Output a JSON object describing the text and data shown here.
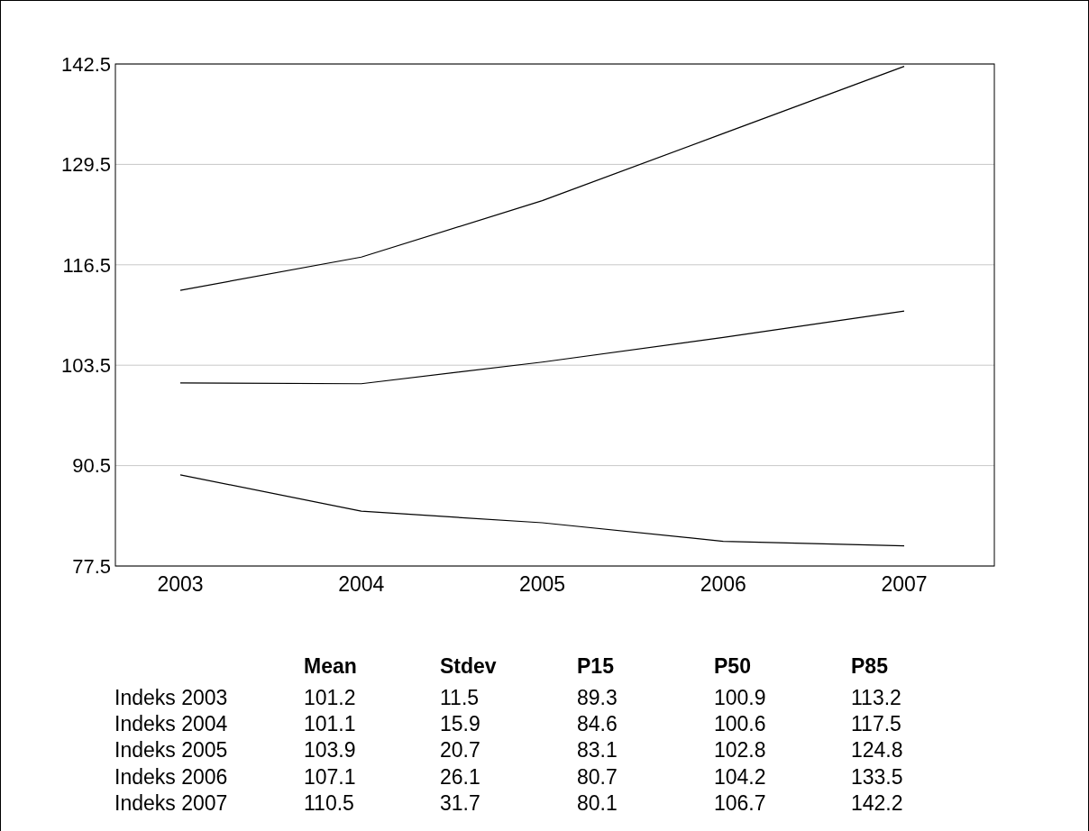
{
  "chart_data": [
    {
      "type": "line",
      "categories": [
        "2003",
        "2004",
        "2005",
        "2006",
        "2007"
      ],
      "ylim": [
        77.5,
        142.5
      ],
      "yticks": [
        77.5,
        90.5,
        103.5,
        116.5,
        129.5,
        142.5
      ],
      "grid": "y",
      "marker": "none",
      "line_style": "solid",
      "series": [
        {
          "color": "#000000",
          "values": [
            113.2,
            117.5,
            124.8,
            133.5,
            142.2
          ]
        },
        {
          "color": "#000000",
          "values": [
            101.2,
            101.1,
            103.9,
            107.1,
            110.5
          ]
        },
        {
          "color": "#000000",
          "values": [
            89.3,
            84.6,
            83.1,
            80.7,
            80.1
          ]
        }
      ]
    },
    {
      "type": "other",
      "categories": [
        "Indeks 2003",
        "Indeks 2004",
        "Indeks 2005",
        "Indeks 2006",
        "Indeks 2007"
      ],
      "data_labels": true,
      "series": [
        {
          "name": "Mean",
          "values": [
            101.2,
            101.1,
            103.9,
            107.1,
            110.5
          ]
        },
        {
          "name": "Stdev",
          "values": [
            11.5,
            15.9,
            20.7,
            26.1,
            31.7
          ]
        },
        {
          "name": "P15",
          "values": [
            89.3,
            84.6,
            83.1,
            80.7,
            80.1
          ]
        },
        {
          "name": "P50",
          "values": [
            100.9,
            100.6,
            102.8,
            104.2,
            106.7
          ]
        },
        {
          "name": "P85",
          "values": [
            113.2,
            117.5,
            124.8,
            133.5,
            142.2
          ]
        }
      ]
    }
  ]
}
